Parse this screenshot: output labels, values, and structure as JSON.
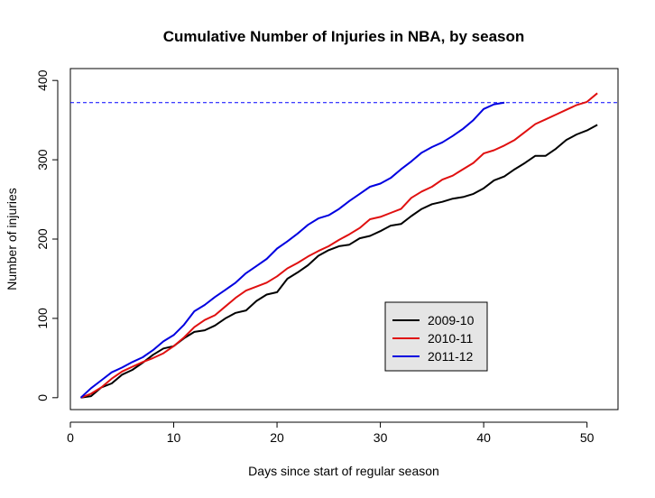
{
  "chart_data": {
    "type": "line",
    "title": "Cumulative Number of Injuries in NBA, by season",
    "xlabel": "Days since start of regular season",
    "ylabel": "Number of injuries",
    "xlim": [
      0,
      53
    ],
    "ylim": [
      -15,
      415
    ],
    "xticks": [
      0,
      10,
      20,
      30,
      40,
      50
    ],
    "yticks": [
      0,
      100,
      200,
      300,
      400
    ],
    "reference_line": {
      "y": 372,
      "color": "#0000ff",
      "style": "dashed"
    },
    "legend": {
      "position": "inside-bottom-center",
      "background": "#e5e5e5"
    },
    "series": [
      {
        "name": "2009-10",
        "color": "#000000",
        "x": [
          1,
          2,
          3,
          4,
          5,
          6,
          7,
          8,
          9,
          10,
          11,
          12,
          13,
          14,
          15,
          16,
          17,
          18,
          19,
          20,
          21,
          22,
          23,
          24,
          25,
          26,
          27,
          28,
          29,
          30,
          31,
          32,
          33,
          34,
          35,
          36,
          37,
          38,
          39,
          40,
          41,
          42,
          43,
          44,
          45,
          46,
          47,
          48,
          49,
          50,
          51
        ],
        "y": [
          0,
          2,
          13,
          18,
          29,
          35,
          44,
          54,
          62,
          65,
          75,
          83,
          85,
          91,
          100,
          107,
          110,
          122,
          130,
          133,
          150,
          158,
          167,
          179,
          186,
          191,
          193,
          201,
          204,
          210,
          217,
          219,
          229,
          238,
          244,
          247,
          251,
          253,
          257,
          264,
          274,
          279,
          288,
          296,
          305,
          305,
          314,
          325,
          332,
          337,
          344
        ]
      },
      {
        "name": "2010-11",
        "color": "#e01010",
        "x": [
          1,
          2,
          3,
          4,
          5,
          6,
          7,
          8,
          9,
          10,
          11,
          12,
          13,
          14,
          15,
          16,
          17,
          18,
          19,
          20,
          21,
          22,
          23,
          24,
          25,
          26,
          27,
          28,
          29,
          30,
          31,
          32,
          33,
          34,
          35,
          36,
          37,
          38,
          39,
          40,
          41,
          42,
          43,
          44,
          45,
          46,
          47,
          48,
          49,
          50,
          51
        ],
        "y": [
          0,
          5,
          13,
          24,
          33,
          39,
          45,
          50,
          56,
          65,
          76,
          89,
          98,
          104,
          115,
          126,
          135,
          140,
          145,
          153,
          163,
          170,
          178,
          185,
          191,
          199,
          206,
          214,
          225,
          228,
          233,
          238,
          252,
          260,
          266,
          275,
          280,
          288,
          296,
          308,
          312,
          318,
          325,
          335,
          345,
          351,
          357,
          363,
          369,
          373,
          384
        ]
      },
      {
        "name": "2011-12",
        "color": "#0000e0",
        "x": [
          1,
          2,
          3,
          4,
          5,
          6,
          7,
          8,
          9,
          10,
          11,
          12,
          13,
          14,
          15,
          16,
          17,
          18,
          19,
          20,
          21,
          22,
          23,
          24,
          25,
          26,
          27,
          28,
          29,
          30,
          31,
          32,
          33,
          34,
          35,
          36,
          37,
          38,
          39,
          40,
          41,
          42
        ],
        "y": [
          0,
          12,
          22,
          32,
          38,
          45,
          51,
          60,
          71,
          79,
          92,
          109,
          117,
          127,
          136,
          145,
          157,
          166,
          175,
          188,
          197,
          207,
          218,
          226,
          230,
          238,
          248,
          257,
          266,
          270,
          277,
          288,
          298,
          309,
          316,
          322,
          330,
          339,
          350,
          364,
          370,
          372
        ]
      }
    ]
  }
}
